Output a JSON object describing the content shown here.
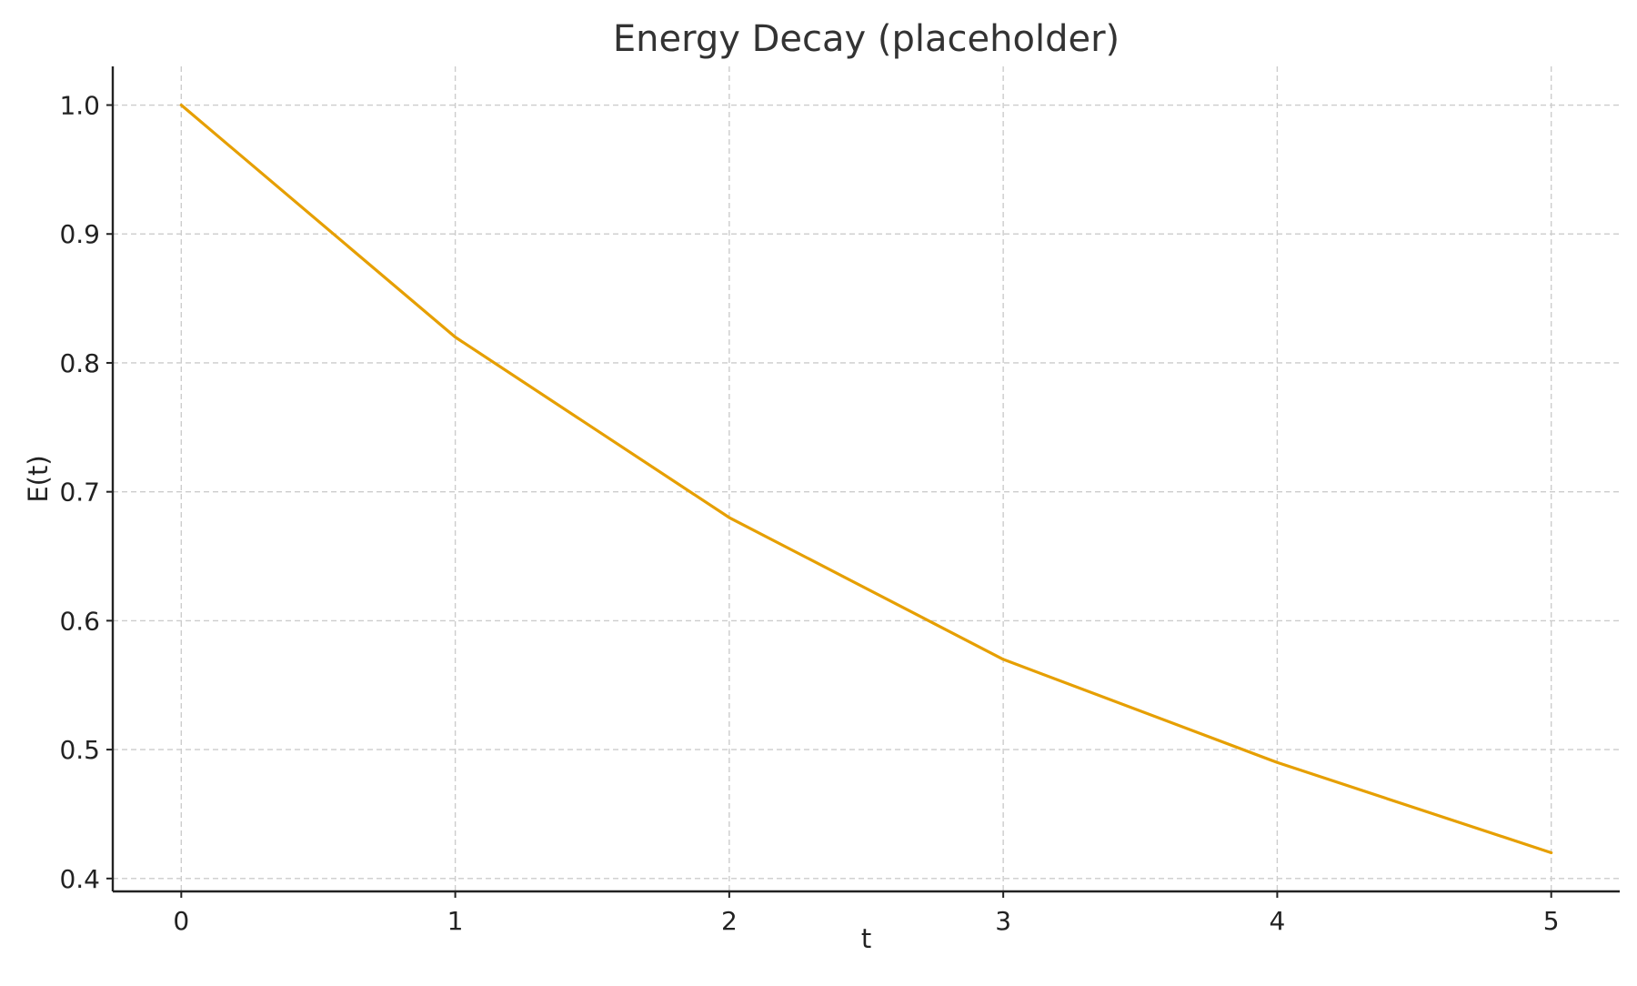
{
  "chart_data": {
    "type": "line",
    "title": "Energy Decay (placeholder)",
    "xlabel": "t",
    "ylabel": "E(t)",
    "x": [
      0,
      1,
      2,
      3,
      4,
      5
    ],
    "series": [
      {
        "values": [
          1.0,
          0.82,
          0.68,
          0.57,
          0.49,
          0.42
        ],
        "color": "#E69F00"
      }
    ],
    "xlim": [
      -0.25,
      5.25
    ],
    "ylim": [
      0.39,
      1.03
    ],
    "xticks": [
      0,
      1,
      2,
      3,
      4,
      5
    ],
    "xtick_labels": [
      "0",
      "1",
      "2",
      "3",
      "4",
      "5"
    ],
    "yticks": [
      0.4,
      0.5,
      0.6,
      0.7,
      0.8,
      0.9,
      1.0
    ],
    "ytick_labels": [
      "0.4",
      "0.5",
      "0.6",
      "0.7",
      "0.8",
      "0.9",
      "1.0"
    ],
    "grid": true,
    "grid_style": "dashed",
    "spines": [
      "left",
      "bottom"
    ]
  }
}
